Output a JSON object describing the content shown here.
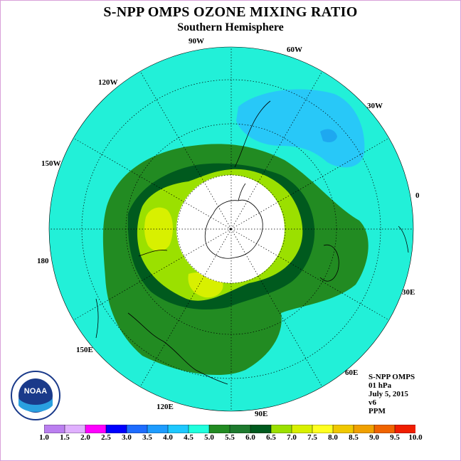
{
  "title": "S-NPP OMPS OZONE MIXING RATIO",
  "subtitle": "Southern Hemisphere",
  "longitude_labels": [
    "90W",
    "60W",
    "30W",
    "0",
    "30E",
    "60E",
    "90E",
    "120E",
    "150E",
    "180",
    "150W",
    "120W"
  ],
  "info": {
    "instrument": "S-NPP OMPS",
    "level": "01 hPa",
    "date": "July 5, 2015",
    "version": "v6",
    "units": "PPM"
  },
  "logo_text": "NOAA",
  "colorbar": {
    "ticks": [
      "1.0",
      "1.5",
      "2.0",
      "2.5",
      "3.0",
      "3.5",
      "4.0",
      "4.5",
      "5.0",
      "5.5",
      "6.0",
      "6.5",
      "7.0",
      "7.5",
      "8.0",
      "8.5",
      "9.0",
      "9.5",
      "10.0"
    ],
    "colors": [
      "#bb7ff0",
      "#e0b0ff",
      "#ff00ff",
      "#0000ff",
      "#1e6cff",
      "#1e9cff",
      "#1ec8ff",
      "#20ffdd",
      "#228b22",
      "#1e7a2e",
      "#005a1e",
      "#9be000",
      "#d8f000",
      "#ffff20",
      "#f0c800",
      "#f0a000",
      "#f06400",
      "#f01e00",
      "#784828"
    ]
  },
  "map": {
    "background_color": "#22f0d8",
    "contour_levels": [
      "4.5",
      "5.0",
      "5.5",
      "6.0",
      "6.5",
      "7.0"
    ]
  }
}
